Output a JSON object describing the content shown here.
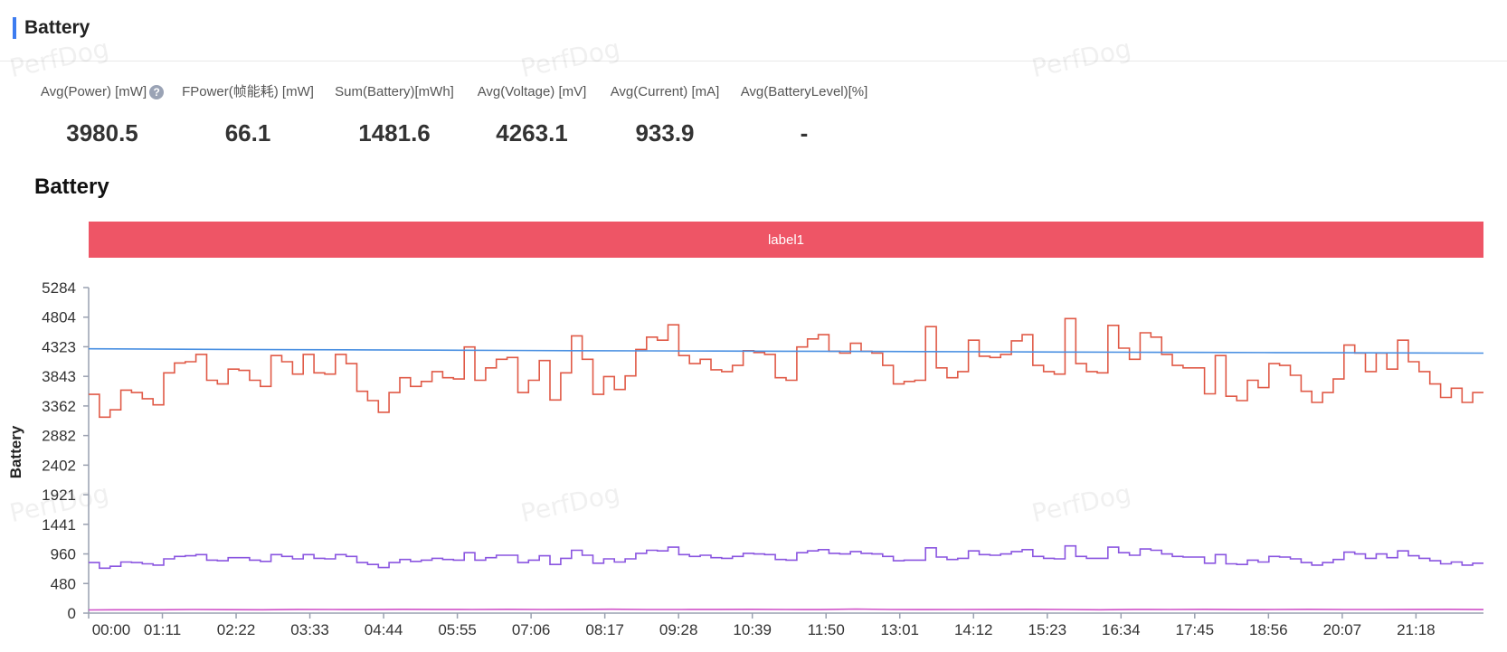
{
  "section": {
    "title": "Battery"
  },
  "metrics": [
    {
      "label": "Avg(Power) [mW]",
      "value": "3980.5",
      "help": "?"
    },
    {
      "label": "FPower(帧能耗) [mW]",
      "value": "66.1"
    },
    {
      "label": "Sum(Battery)[mWh]",
      "value": "1481.6"
    },
    {
      "label": "Avg(Voltage) [mV]",
      "value": "4263.1"
    },
    {
      "label": "Avg(Current) [mA]",
      "value": "933.9"
    },
    {
      "label": "Avg(BatteryLevel)[%]",
      "value": "-"
    }
  ],
  "watermark": "PerfDog",
  "colors": {
    "accent": "#3d7cf0",
    "label_band": "#ee5566",
    "power": "#e05a47",
    "voltage": "#4a90e2",
    "current": "#8a55e0",
    "fpower": "#d050c8",
    "axis": "#99a0b0"
  },
  "chart_data": {
    "type": "line",
    "title": "Battery",
    "ylabel": "Battery",
    "label_band": "label1",
    "ylim": [
      0,
      5284
    ],
    "yticks": [
      "0",
      "480",
      "960",
      "1441",
      "1921",
      "2402",
      "2882",
      "3362",
      "3843",
      "4323",
      "4804",
      "5284"
    ],
    "xlim": [
      0,
      1343
    ],
    "xticks": [
      {
        "label": "00:00",
        "t": 0
      },
      {
        "label": "01:11",
        "t": 71
      },
      {
        "label": "02:22",
        "t": 142
      },
      {
        "label": "03:33",
        "t": 213
      },
      {
        "label": "04:44",
        "t": 284
      },
      {
        "label": "05:55",
        "t": 355
      },
      {
        "label": "07:06",
        "t": 426
      },
      {
        "label": "08:17",
        "t": 497
      },
      {
        "label": "09:28",
        "t": 568
      },
      {
        "label": "10:39",
        "t": 639
      },
      {
        "label": "11:50",
        "t": 710
      },
      {
        "label": "13:01",
        "t": 781
      },
      {
        "label": "14:12",
        "t": 852
      },
      {
        "label": "15:23",
        "t": 923
      },
      {
        "label": "16:34",
        "t": 994
      },
      {
        "label": "17:45",
        "t": 1065
      },
      {
        "label": "18:56",
        "t": 1136
      },
      {
        "label": "20:07",
        "t": 1207
      },
      {
        "label": "21:18",
        "t": 1278
      }
    ],
    "series": [
      {
        "key": "power",
        "step": true,
        "values": [
          3550,
          3550,
          3180,
          3180,
          3300,
          3300,
          3620,
          3620,
          3580,
          3580,
          3480,
          3480,
          3380,
          3380,
          3900,
          3900,
          4060,
          4060,
          4080,
          4080,
          4200,
          4200,
          3780,
          3780,
          3720,
          3720,
          3960,
          3960,
          3940,
          3940,
          3780,
          3780,
          3680,
          3680,
          4180,
          4180,
          4080,
          4080,
          3880,
          3880,
          4200,
          4200,
          3900,
          3900,
          3880,
          3880,
          4200,
          4200,
          4050,
          4050,
          3600,
          3600,
          3450,
          3450,
          3260,
          3260,
          3580,
          3580,
          3820,
          3820,
          3680,
          3680,
          3760,
          3760,
          3920,
          3920,
          3820,
          3820,
          3800,
          3800,
          4320,
          4320,
          3780,
          3780,
          3980,
          3980,
          4120,
          4120,
          4150,
          4150,
          3580,
          3580,
          3780,
          3780,
          4100,
          4100,
          3460,
          3460,
          3900,
          3900,
          4500,
          4500,
          4120,
          4120,
          3550,
          3550,
          3840,
          3840,
          3630,
          3630,
          3850,
          3850,
          4280,
          4280,
          4480,
          4480,
          4430,
          4430,
          4680,
          4680,
          4180,
          4180,
          4050,
          4050,
          4120,
          4120,
          3950,
          3950,
          3920,
          3920,
          4020,
          4020,
          4260,
          4260,
          4230,
          4230,
          4200,
          4200,
          3820,
          3820,
          3780,
          3780,
          4320,
          4320,
          4450,
          4450,
          4520,
          4520,
          4250,
          4250,
          4220,
          4220,
          4380,
          4380,
          4250,
          4250,
          4220,
          4220,
          4020,
          4020,
          3720,
          3720,
          3760,
          3760,
          3780,
          3780,
          4650,
          4650,
          3980,
          3980,
          3820,
          3820,
          3920,
          3920,
          4430,
          4430,
          4170,
          4170,
          4150,
          4150,
          4200,
          4200,
          4420,
          4420,
          4520,
          4520,
          4020,
          4020,
          3920,
          3920,
          3880,
          3880,
          4780,
          4780,
          4050,
          4050,
          3920,
          3920,
          3900,
          3900,
          4670,
          4670,
          4300,
          4300,
          4120,
          4120,
          4550,
          4550,
          4480,
          4480,
          4200,
          4200,
          4020,
          4020,
          3980,
          3980,
          3980,
          3980,
          3560,
          3560,
          4180,
          4180,
          3520,
          3520,
          3450,
          3450,
          3780,
          3780,
          3660,
          3660,
          4050,
          4050,
          4020,
          4020,
          3860,
          3860,
          3600,
          3600,
          3420,
          3420,
          3580,
          3580,
          3800,
          3800,
          4350,
          4350,
          4220,
          4220,
          3920,
          3920,
          4220,
          4220,
          3960,
          3960,
          4430,
          4430,
          4080,
          4080,
          3920,
          3920,
          3720,
          3720,
          3500,
          3500,
          3650,
          3650,
          3420,
          3420,
          3580,
          3580
        ]
      },
      {
        "key": "voltage",
        "step": false,
        "values": [
          4290,
          4285,
          4280,
          4275,
          4272,
          4268,
          4264,
          4260,
          4257,
          4254,
          4251,
          4248,
          4245,
          4242,
          4238,
          4235,
          4232,
          4228,
          4226,
          4223,
          4220
        ]
      },
      {
        "key": "current",
        "step": true,
        "values": [
          820,
          820,
          730,
          730,
          760,
          760,
          830,
          830,
          820,
          820,
          800,
          800,
          780,
          780,
          880,
          880,
          920,
          920,
          930,
          930,
          950,
          950,
          860,
          860,
          850,
          850,
          900,
          900,
          900,
          900,
          860,
          860,
          840,
          840,
          950,
          950,
          920,
          920,
          880,
          880,
          950,
          950,
          890,
          890,
          880,
          880,
          950,
          950,
          920,
          920,
          820,
          820,
          790,
          790,
          740,
          740,
          820,
          820,
          870,
          870,
          840,
          840,
          860,
          860,
          890,
          890,
          870,
          870,
          860,
          860,
          980,
          980,
          860,
          860,
          900,
          900,
          940,
          940,
          940,
          940,
          820,
          820,
          860,
          860,
          930,
          930,
          790,
          790,
          890,
          890,
          1020,
          1020,
          940,
          940,
          810,
          810,
          880,
          880,
          830,
          830,
          880,
          880,
          970,
          970,
          1020,
          1020,
          1010,
          1010,
          1070,
          1070,
          950,
          950,
          920,
          920,
          940,
          940,
          900,
          900,
          890,
          890,
          920,
          920,
          970,
          970,
          960,
          960,
          950,
          950,
          870,
          870,
          860,
          860,
          980,
          980,
          1010,
          1010,
          1030,
          1030,
          970,
          970,
          960,
          960,
          1000,
          1000,
          970,
          970,
          960,
          960,
          920,
          920,
          850,
          850,
          860,
          860,
          860,
          860,
          1060,
          1060,
          910,
          910,
          870,
          870,
          890,
          890,
          1010,
          1010,
          950,
          950,
          940,
          940,
          960,
          960,
          1000,
          1000,
          1030,
          1030,
          920,
          920,
          890,
          890,
          880,
          880,
          1090,
          1090,
          920,
          920,
          890,
          890,
          890,
          890,
          1070,
          1070,
          980,
          980,
          940,
          940,
          1040,
          1040,
          1020,
          1020,
          960,
          960,
          920,
          920,
          910,
          910,
          910,
          910,
          810,
          810,
          950,
          950,
          800,
          800,
          790,
          790,
          860,
          860,
          830,
          830,
          920,
          920,
          910,
          910,
          880,
          880,
          820,
          820,
          780,
          780,
          820,
          820,
          870,
          870,
          990,
          990,
          960,
          960,
          890,
          890,
          960,
          960,
          900,
          900,
          1010,
          1010,
          930,
          930,
          890,
          890,
          850,
          850,
          800,
          800,
          830,
          830,
          780,
          780,
          810,
          810
        ]
      },
      {
        "key": "fpower",
        "step": false,
        "values": [
          52,
          54,
          55,
          58,
          56,
          55,
          60,
          58,
          57,
          62,
          60,
          58,
          61,
          59,
          60,
          63,
          59,
          58,
          60,
          62,
          58,
          57,
          66,
          58,
          57,
          59,
          60,
          62,
          58,
          55,
          60,
          59,
          61,
          57,
          58,
          62,
          59,
          58,
          60,
          61,
          57
        ]
      }
    ]
  }
}
